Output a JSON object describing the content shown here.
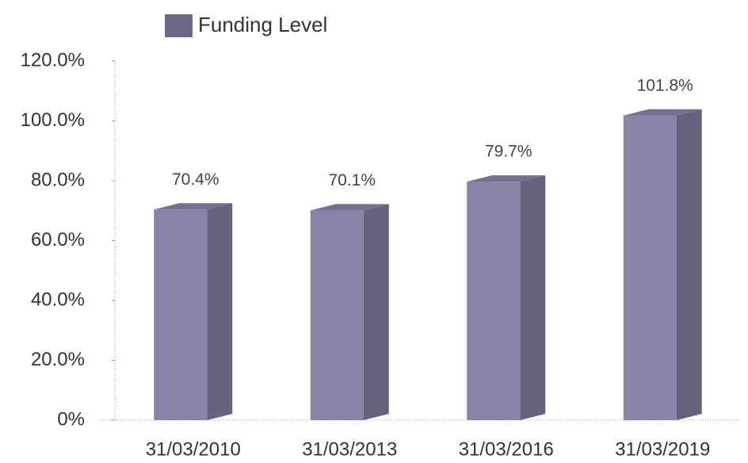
{
  "chart_data": {
    "type": "bar3d",
    "categories": [
      "31/03/2010",
      "31/03/2013",
      "31/03/2016",
      "31/03/2019"
    ],
    "series": [
      {
        "name": "Funding Level",
        "color": "#8b82a8",
        "values": [
          70.4,
          70.1,
          79.7,
          101.8
        ],
        "value_labels": [
          "70.4%",
          "70.1%",
          "79.7%",
          "101.8%"
        ]
      }
    ],
    "ylim": [
      0,
      120
    ],
    "yticks": [
      {
        "value": 0,
        "label": "0%"
      },
      {
        "value": 20,
        "label": "20.0%"
      },
      {
        "value": 40,
        "label": "40.0%"
      },
      {
        "value": 60,
        "label": "60.0%"
      },
      {
        "value": 80,
        "label": "80.0%"
      },
      {
        "value": 100,
        "label": "100.0%"
      },
      {
        "value": 120,
        "label": "120.0%"
      }
    ],
    "legend": "top"
  }
}
